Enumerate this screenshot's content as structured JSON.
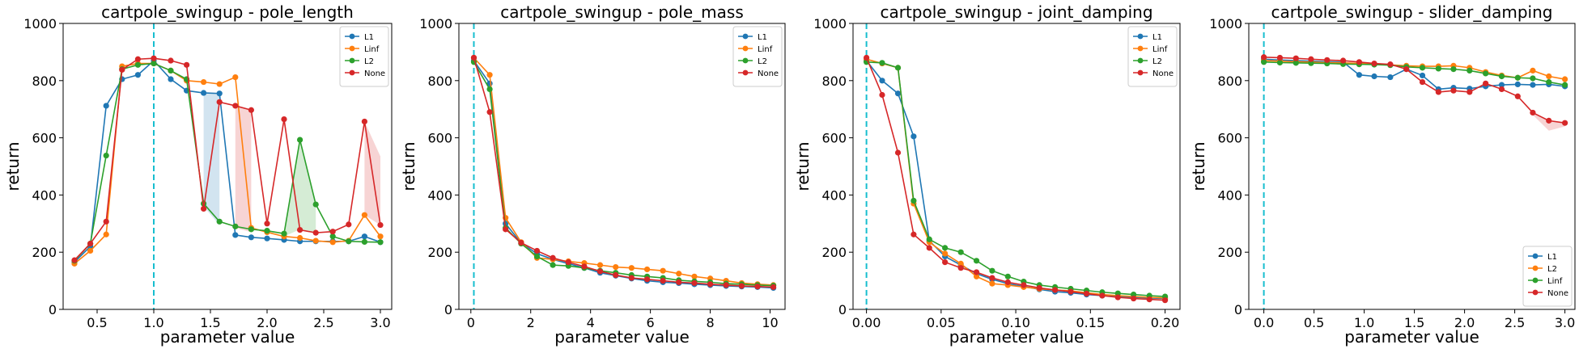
{
  "colors": {
    "C0": "#1f77b4",
    "C1": "#ff7f0e",
    "C2": "#2ca02c",
    "C3": "#d62728",
    "vline": "#17becf"
  },
  "chart_data": [
    {
      "type": "line",
      "title": "cartpole_swingup - pole_length",
      "xlabel": "parameter value",
      "ylabel": "return",
      "xlim": [
        0.2,
        3.1
      ],
      "ylim": [
        0,
        1000
      ],
      "xticks": [
        0.5,
        1.0,
        1.5,
        2.0,
        2.5,
        3.0
      ],
      "xtick_labels": [
        "0.5",
        "1.0",
        "1.5",
        "2.0",
        "2.5",
        "3.0"
      ],
      "yticks": [
        0,
        200,
        400,
        600,
        800,
        1000
      ],
      "ytick_labels": [
        "0",
        "200",
        "400",
        "600",
        "800",
        "1000"
      ],
      "vline": 1.0,
      "legend_position": "top-right",
      "x": [
        0.3,
        0.44,
        0.58,
        0.72,
        0.86,
        1.0,
        1.15,
        1.29,
        1.44,
        1.58,
        1.72,
        1.86,
        2.0,
        2.15,
        2.29,
        2.43,
        2.58,
        2.72,
        2.86,
        3.0
      ],
      "series": [
        {
          "name": "L1",
          "color": "C0",
          "values": [
            165,
            220,
            712,
            805,
            820,
            870,
            805,
            765,
            757,
            755,
            260,
            252,
            248,
            243,
            238,
            238,
            238,
            238,
            255,
            235
          ]
        },
        {
          "name": "Linf",
          "color": "C1",
          "values": [
            160,
            205,
            262,
            850,
            860,
            860,
            835,
            800,
            795,
            788,
            812,
            285,
            270,
            255,
            250,
            240,
            235,
            240,
            330,
            255
          ]
        },
        {
          "name": "L2",
          "color": "C2",
          "values": [
            170,
            230,
            538,
            840,
            855,
            860,
            835,
            805,
            370,
            307,
            290,
            280,
            275,
            265,
            593,
            367,
            255,
            238,
            236,
            235
          ]
        },
        {
          "name": "None",
          "color": "C3",
          "values": [
            172,
            230,
            307,
            838,
            875,
            878,
            870,
            855,
            352,
            725,
            712,
            697,
            300,
            665,
            278,
            268,
            272,
            297,
            657,
            295
          ]
        }
      ],
      "bands": [
        {
          "color": "C0",
          "points": [
            [
              1.44,
              757,
              360
            ],
            [
              1.58,
              755,
              295
            ]
          ]
        },
        {
          "color": "C3",
          "points": [
            [
              1.72,
              712,
              285
            ],
            [
              1.86,
              697,
              270
            ]
          ]
        },
        {
          "color": "C2",
          "points": [
            [
              2.15,
              265,
              255
            ],
            [
              2.29,
              593,
              280
            ],
            [
              2.43,
              367,
              270
            ]
          ]
        },
        {
          "color": "C3",
          "points": [
            [
              2.86,
              657,
              330
            ],
            [
              3.0,
              535,
              295
            ]
          ]
        }
      ]
    },
    {
      "type": "line",
      "title": "cartpole_swingup - pole_mass",
      "xlabel": "parameter value",
      "ylabel": "return",
      "xlim": [
        -0.4,
        10.5
      ],
      "ylim": [
        0,
        1000
      ],
      "xticks": [
        0,
        2,
        4,
        6,
        8,
        10
      ],
      "xtick_labels": [
        "0",
        "2",
        "4",
        "6",
        "8",
        "10"
      ],
      "yticks": [
        0,
        200,
        400,
        600,
        800,
        1000
      ],
      "ytick_labels": [
        "0",
        "200",
        "400",
        "600",
        "800",
        "1000"
      ],
      "vline": 0.1,
      "legend_position": "top-right",
      "x": [
        0.1,
        0.63,
        1.16,
        1.68,
        2.21,
        2.74,
        3.26,
        3.79,
        4.32,
        4.84,
        5.37,
        5.89,
        6.42,
        6.95,
        7.47,
        8.0,
        8.53,
        9.05,
        9.58,
        10.11
      ],
      "series": [
        {
          "name": "L1",
          "color": "C0",
          "values": [
            870,
            790,
            300,
            232,
            195,
            175,
            160,
            145,
            128,
            118,
            108,
            100,
            95,
            92,
            88,
            85,
            82,
            80,
            78,
            75
          ]
        },
        {
          "name": "Linf",
          "color": "C1",
          "values": [
            880,
            820,
            320,
            235,
            180,
            175,
            168,
            162,
            155,
            148,
            145,
            140,
            135,
            125,
            115,
            108,
            100,
            92,
            88,
            85
          ]
        },
        {
          "name": "L2",
          "color": "C2",
          "values": [
            865,
            770,
            285,
            230,
            185,
            155,
            152,
            145,
            135,
            128,
            120,
            115,
            110,
            102,
            98,
            95,
            90,
            88,
            85,
            83
          ]
        },
        {
          "name": "None",
          "color": "C3",
          "values": [
            880,
            690,
            280,
            233,
            205,
            180,
            165,
            150,
            133,
            120,
            110,
            105,
            100,
            95,
            92,
            88,
            85,
            82,
            80,
            78
          ]
        }
      ],
      "bands": []
    },
    {
      "type": "line",
      "title": "cartpole_swingup - joint_damping",
      "xlabel": "parameter value",
      "ylabel": "return",
      "xlim": [
        -0.009,
        0.21
      ],
      "ylim": [
        0,
        1000
      ],
      "xticks": [
        0.0,
        0.05,
        0.1,
        0.15,
        0.2
      ],
      "xtick_labels": [
        "0.00",
        "0.05",
        "0.10",
        "0.15",
        "0.20"
      ],
      "yticks": [
        0,
        200,
        400,
        600,
        800,
        1000
      ],
      "ytick_labels": [
        "0",
        "200",
        "400",
        "600",
        "800",
        "1000"
      ],
      "vline": 0.0,
      "legend_position": "top-right",
      "x": [
        0.0,
        0.0105,
        0.0211,
        0.0316,
        0.0421,
        0.0526,
        0.0632,
        0.0737,
        0.0842,
        0.0947,
        0.1053,
        0.1158,
        0.1263,
        0.1368,
        0.1474,
        0.1579,
        0.1684,
        0.1789,
        0.1895,
        0.2
      ],
      "series": [
        {
          "name": "L1",
          "color": "C0",
          "values": [
            870,
            800,
            755,
            605,
            240,
            185,
            155,
            125,
            105,
            90,
            80,
            70,
            62,
            58,
            52,
            48,
            45,
            42,
            40,
            38
          ]
        },
        {
          "name": "Linf",
          "color": "C1",
          "values": [
            875,
            860,
            845,
            370,
            235,
            195,
            160,
            115,
            90,
            85,
            78,
            72,
            68,
            65,
            58,
            52,
            48,
            45,
            42,
            40
          ]
        },
        {
          "name": "L2",
          "color": "C2",
          "values": [
            865,
            862,
            845,
            380,
            245,
            215,
            200,
            170,
            135,
            115,
            97,
            85,
            78,
            72,
            66,
            60,
            56,
            52,
            48,
            45
          ]
        },
        {
          "name": "None",
          "color": "C3",
          "values": [
            880,
            750,
            548,
            262,
            215,
            165,
            145,
            130,
            110,
            95,
            85,
            75,
            68,
            62,
            55,
            48,
            42,
            38,
            35,
            32
          ]
        }
      ],
      "bands": []
    },
    {
      "type": "line",
      "title": "cartpole_swingup - slider_damping",
      "xlabel": "parameter value",
      "ylabel": "return",
      "xlim": [
        -0.15,
        3.1
      ],
      "ylim": [
        0,
        1000
      ],
      "xticks": [
        0.0,
        0.5,
        1.0,
        1.5,
        2.0,
        2.5,
        3.0
      ],
      "xtick_labels": [
        "0.0",
        "0.5",
        "1.0",
        "1.5",
        "2.0",
        "2.5",
        "3.0"
      ],
      "yticks": [
        0,
        200,
        400,
        600,
        800,
        1000
      ],
      "ytick_labels": [
        "0",
        "200",
        "400",
        "600",
        "800",
        "1000"
      ],
      "vline": 0.0,
      "legend_position": "bottom-right",
      "x": [
        0.0,
        0.16,
        0.32,
        0.47,
        0.63,
        0.79,
        0.95,
        1.1,
        1.26,
        1.42,
        1.58,
        1.74,
        1.89,
        2.05,
        2.21,
        2.37,
        2.53,
        2.68,
        2.84,
        3.0
      ],
      "series": [
        {
          "name": "L1",
          "color": "C0",
          "values": [
            875,
            872,
            870,
            868,
            866,
            865,
            820,
            815,
            812,
            840,
            818,
            770,
            775,
            772,
            780,
            785,
            787,
            785,
            787,
            780
          ]
        },
        {
          "name": "L2",
          "color": "C1",
          "values": [
            870,
            868,
            866,
            865,
            863,
            862,
            860,
            858,
            855,
            852,
            850,
            850,
            852,
            845,
            830,
            818,
            810,
            835,
            815,
            805
          ]
        },
        {
          "name": "Linf",
          "color": "C2",
          "values": [
            865,
            863,
            862,
            861,
            860,
            858,
            857,
            856,
            854,
            848,
            845,
            842,
            840,
            835,
            825,
            815,
            810,
            808,
            795,
            785
          ]
        },
        {
          "name": "None",
          "color": "C3",
          "values": [
            882,
            880,
            878,
            875,
            872,
            870,
            865,
            860,
            857,
            840,
            795,
            760,
            765,
            760,
            790,
            770,
            745,
            688,
            660,
            652
          ]
        }
      ],
      "bands": [
        {
          "color": "C3",
          "points": [
            [
              2.68,
              688,
              680
            ],
            [
              2.84,
              660,
              625
            ],
            [
              3.0,
              652,
              640
            ]
          ]
        }
      ]
    }
  ]
}
